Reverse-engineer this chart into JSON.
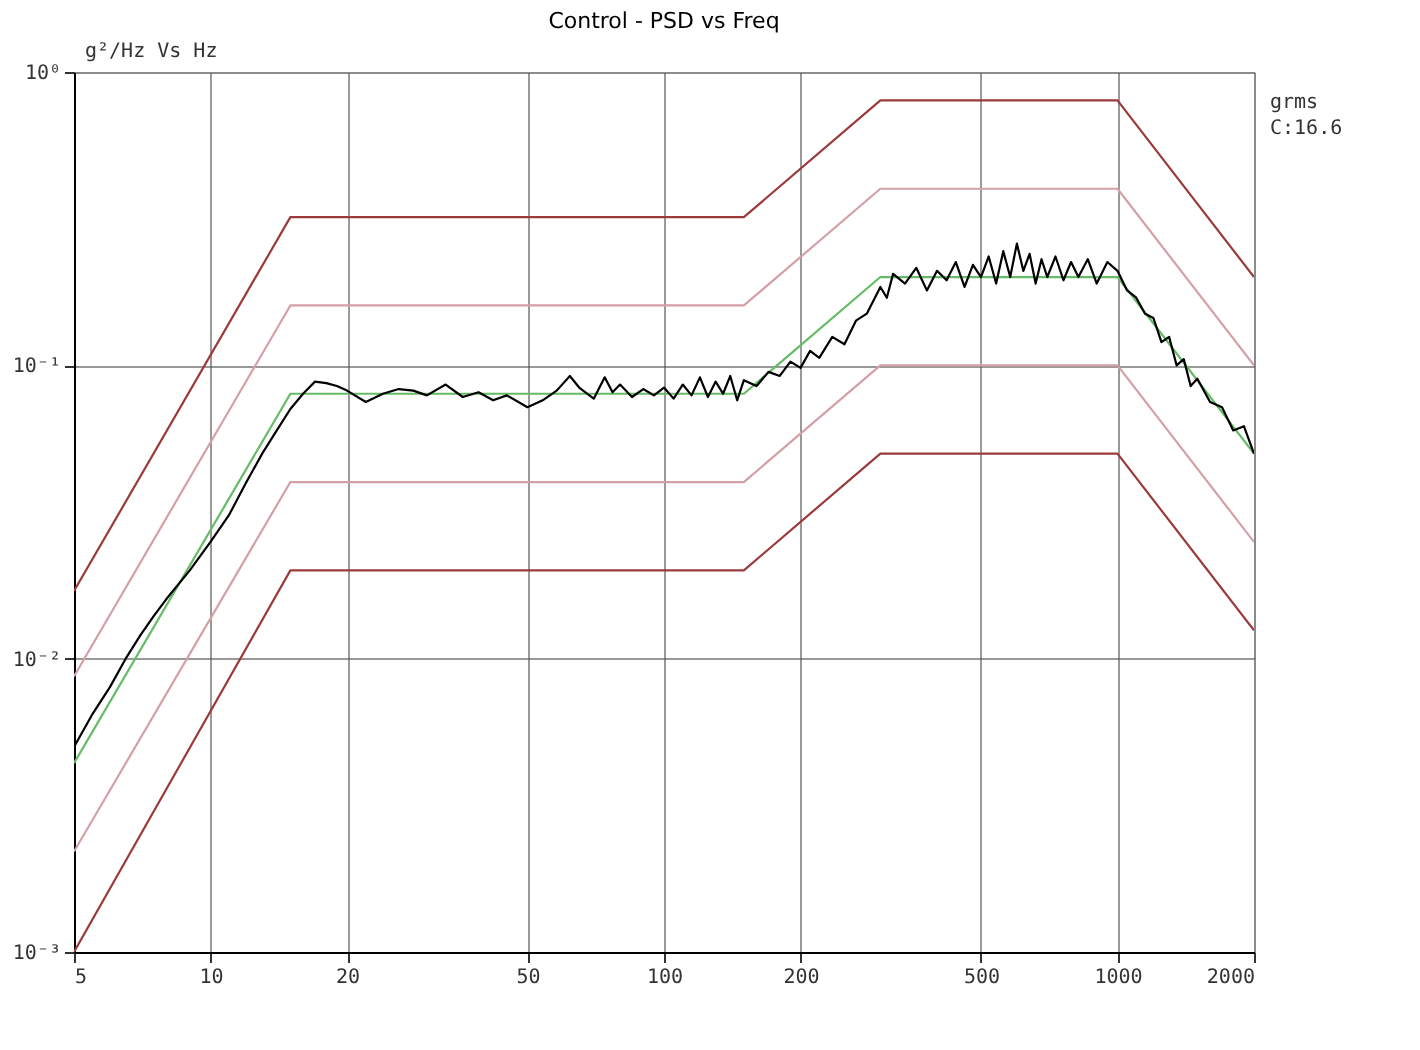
{
  "chart_data": {
    "type": "line",
    "title": "Control - PSD vs Freq",
    "ylabel": "g²/Hz Vs Hz",
    "annotations": [
      "grms",
      "C:16.6"
    ],
    "log": "xy",
    "grid": true,
    "marker": "none",
    "line_style": "solid",
    "xlim": [
      5,
      2000
    ],
    "xticks": [
      5,
      10,
      20,
      50,
      100,
      200,
      500,
      1000,
      2000
    ],
    "ylim": [
      0.001,
      1
    ],
    "yticks": [
      {
        "value": 1,
        "label": "10⁰"
      },
      {
        "value": 0.1,
        "label": "10⁻¹"
      },
      {
        "value": 0.01,
        "label": "10⁻²"
      },
      {
        "value": 0.001,
        "label": "10⁻³"
      }
    ],
    "series": [
      {
        "color": "#9b3a3a",
        "x": [
          5,
          15,
          150,
          300,
          1000,
          2000
        ],
        "values": [
          0.017,
          0.32,
          0.32,
          0.8,
          0.8,
          0.2
        ]
      },
      {
        "color": "#d4a0a8",
        "x": [
          5,
          15,
          150,
          300,
          1000,
          2000
        ],
        "values": [
          0.0087,
          0.16,
          0.16,
          0.4,
          0.4,
          0.1
        ]
      },
      {
        "color": "#d4a0a8",
        "x": [
          5,
          15,
          150,
          300,
          1000,
          2000
        ],
        "values": [
          0.0022,
          0.04,
          0.04,
          0.1,
          0.1,
          0.025
        ]
      },
      {
        "color": "#9b3a3a",
        "x": [
          5,
          15,
          150,
          300,
          1000,
          2000
        ],
        "values": [
          0.001,
          0.02,
          0.02,
          0.05,
          0.05,
          0.0125
        ]
      },
      {
        "color": "#66bb66",
        "x": [
          5,
          15,
          150,
          300,
          1000,
          2000
        ],
        "values": [
          0.0044,
          0.08,
          0.08,
          0.2,
          0.2,
          0.05
        ]
      },
      {
        "color": "#000000",
        "x": [
          5,
          5.5,
          6,
          6.5,
          7,
          7.5,
          8,
          9,
          10,
          11,
          12,
          13,
          14,
          15,
          16,
          17,
          18,
          19,
          20,
          22,
          24,
          26,
          28,
          30,
          33,
          36,
          39,
          42,
          45,
          50,
          54,
          58,
          62,
          65,
          70,
          74,
          77,
          80,
          85,
          90,
          95,
          100,
          105,
          110,
          115,
          120,
          125,
          130,
          135,
          140,
          145,
          150,
          160,
          170,
          180,
          190,
          200,
          210,
          220,
          235,
          250,
          265,
          280,
          300,
          310,
          320,
          340,
          360,
          380,
          400,
          420,
          440,
          460,
          480,
          500,
          520,
          540,
          560,
          580,
          600,
          620,
          640,
          660,
          680,
          700,
          730,
          760,
          790,
          820,
          860,
          900,
          950,
          1000,
          1050,
          1100,
          1150,
          1200,
          1250,
          1300,
          1350,
          1400,
          1450,
          1500,
          1600,
          1700,
          1800,
          1900,
          2000
        ],
        "values": [
          0.005,
          0.0065,
          0.008,
          0.01,
          0.012,
          0.014,
          0.016,
          0.02,
          0.025,
          0.031,
          0.04,
          0.05,
          0.06,
          0.071,
          0.08,
          0.088,
          0.087,
          0.085,
          0.082,
          0.075,
          0.08,
          0.083,
          0.082,
          0.079,
          0.086,
          0.078,
          0.081,
          0.076,
          0.079,
          0.072,
          0.076,
          0.082,
          0.092,
          0.084,
          0.077,
          0.091,
          0.081,
          0.086,
          0.078,
          0.083,
          0.079,
          0.084,
          0.077,
          0.086,
          0.079,
          0.091,
          0.078,
          0.088,
          0.08,
          0.092,
          0.076,
          0.089,
          0.085,
          0.095,
          0.092,
          0.103,
          0.098,
          0.112,
          0.106,
          0.125,
          0.118,
          0.142,
          0.15,
          0.185,
          0.17,
          0.205,
          0.19,
          0.215,
          0.18,
          0.21,
          0.195,
          0.225,
          0.185,
          0.22,
          0.2,
          0.235,
          0.19,
          0.245,
          0.2,
          0.26,
          0.21,
          0.24,
          0.19,
          0.23,
          0.2,
          0.235,
          0.195,
          0.225,
          0.2,
          0.23,
          0.19,
          0.225,
          0.21,
          0.18,
          0.17,
          0.15,
          0.145,
          0.12,
          0.125,
          0.1,
          0.105,
          0.085,
          0.09,
          0.075,
          0.072,
          0.06,
          0.062,
          0.05
        ]
      }
    ]
  }
}
